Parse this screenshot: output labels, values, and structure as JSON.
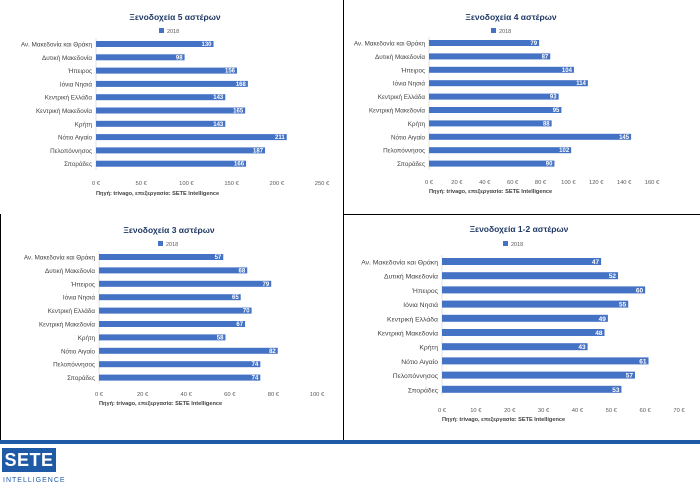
{
  "brand": {
    "logo_text": "SETE",
    "logo_subtitle": "INTELLIGENCE",
    "brand_color": "#1f5aa6"
  },
  "bar_color": "#4472c4",
  "chart_data": [
    {
      "type": "bar",
      "orientation": "horizontal",
      "title": "Ξενοδοχεία 5 αστέρων",
      "legend": "2018",
      "legend_position": "top",
      "source": "Πηγή: trivago, επεξεργασία: SETE Intelligence",
      "categories": [
        "Αν. Μακεδονία και Θράκη",
        "Δυτική Μακεδονία",
        "Ήπειρος",
        "Ιόνια Νησιά",
        "Κεντρική Ελλάδα",
        "Κεντρική Μακεδονία",
        "Κρήτη",
        "Νότιο Αιγαίο",
        "Πελοπόννησος",
        "Σποράδες"
      ],
      "series": [
        {
          "name": "2018",
          "values": [
            130,
            98,
            156,
            168,
            143,
            165,
            143,
            211,
            187,
            166
          ]
        }
      ],
      "xlim": [
        0,
        250
      ],
      "ticks": [
        "0 €",
        "50 €",
        "100 €",
        "150 €",
        "200 €",
        "250 €"
      ]
    },
    {
      "type": "bar",
      "orientation": "horizontal",
      "title": "Ξενοδοχεία 4 αστέρων",
      "legend": "2018",
      "legend_position": "top",
      "source": "Πηγή: trivago, επεξεργασία: SETE Intelligence",
      "categories": [
        "Αν. Μακεδονία και Θράκη",
        "Δυτική Μακεδονία",
        "Ήπειρος",
        "Ιόνια Νησιά",
        "Κεντρική Ελλάδα",
        "Κεντρική Μακεδονία",
        "Κρήτη",
        "Νότιο Αιγαίο",
        "Πελοπόννησος",
        "Σποράδες"
      ],
      "series": [
        {
          "name": "2018",
          "values": [
            79,
            87,
            104,
            114,
            93,
            95,
            88,
            145,
            102,
            90
          ]
        }
      ],
      "xlim": [
        0,
        160
      ],
      "ticks": [
        "0 €",
        "20 €",
        "40 €",
        "60 €",
        "80 €",
        "100 €",
        "120 €",
        "140 €",
        "160 €"
      ]
    },
    {
      "type": "bar",
      "orientation": "horizontal",
      "title": "Ξενοδοχεία 3 αστέρων",
      "legend": "2018",
      "legend_position": "top",
      "source": "Πηγή: trivago, επεξεργασία: SETE Intelligence",
      "categories": [
        "Αν. Μακεδονία και Θράκη",
        "Δυτική Μακεδονία",
        "Ήπειρος",
        "Ιόνια Νησιά",
        "Κεντρική Ελλάδα",
        "Κεντρική Μακεδονία",
        "Κρήτη",
        "Νότιο Αιγαίο",
        "Πελοπόννησος",
        "Σποράδες"
      ],
      "series": [
        {
          "name": "2018",
          "values": [
            57,
            68,
            79,
            65,
            70,
            67,
            58,
            82,
            74,
            74
          ]
        }
      ],
      "xlim": [
        0,
        100
      ],
      "ticks": [
        "0 €",
        "20 €",
        "40 €",
        "60 €",
        "80 €",
        "100 €"
      ]
    },
    {
      "type": "bar",
      "orientation": "horizontal",
      "title": "Ξενοδοχεία 1-2 αστέρων",
      "legend": "2018",
      "legend_position": "top",
      "source": "Πηγή: trivago, επεξεργασία: SETE Intelligence",
      "categories": [
        "Αν. Μακεδονία και Θράκη",
        "Δυτική Μακεδονία",
        "Ήπειρος",
        "Ιόνια Νησιά",
        "Κεντρική Ελλάδα",
        "Κεντρική Μακεδονία",
        "Κρήτη",
        "Νότιο Αιγαίο",
        "Πελοπόννησος",
        "Σποράδες"
      ],
      "series": [
        {
          "name": "2018",
          "values": [
            47,
            52,
            60,
            55,
            49,
            48,
            43,
            61,
            57,
            53
          ]
        }
      ],
      "xlim": [
        0,
        70
      ],
      "ticks": [
        "0 €",
        "10 €",
        "20 €",
        "30 €",
        "40 €",
        "50 €",
        "60 €",
        "70 €"
      ]
    }
  ]
}
